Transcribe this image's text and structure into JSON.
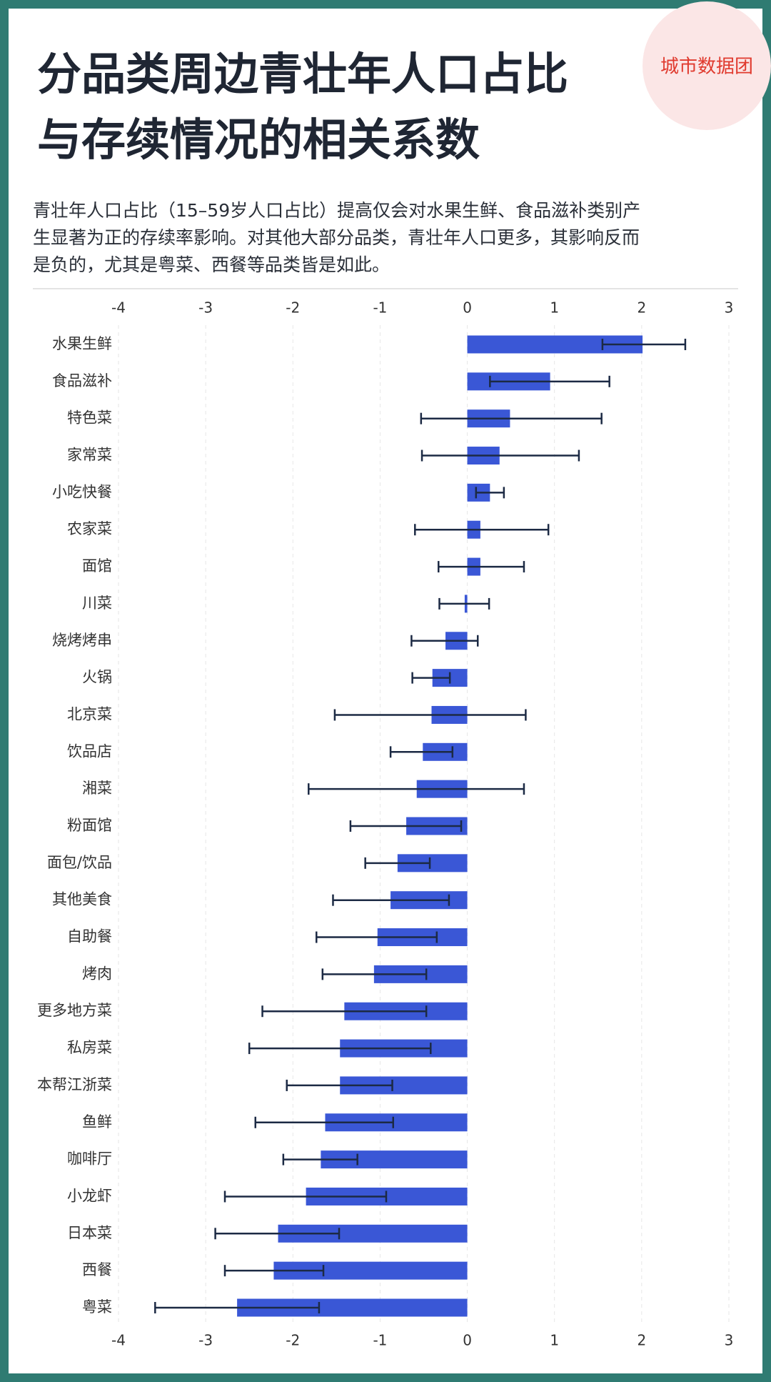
{
  "chart_data": {
    "type": "bar",
    "orientation": "horizontal",
    "title": [
      "分品类周边青壮年人口占比",
      "与存续情况的相关系数"
    ],
    "subtitle": [
      "青壮年人口占比（15–59岁人口占比）提高仅会对水果生鲜、食品滋补类别产",
      "生显著为正的存续率影响。对其他大部分品类，青壮年人口更多，其影响反而",
      "是负的，尤其是粤菜、西餐等品类皆是如此。"
    ],
    "watermark": "城市数据团",
    "categories": [
      "水果生鲜",
      "食品滋补",
      "特色菜",
      "家常菜",
      "小吃快餐",
      "农家菜",
      "面馆",
      "川菜",
      "烧烤烤串",
      "火锅",
      "北京菜",
      "饮品店",
      "湘菜",
      "粉面馆",
      "面包/饮品",
      "其他美食",
      "自助餐",
      "烤肉",
      "更多地方菜",
      "私房菜",
      "本帮江浙菜",
      "鱼鲜",
      "咖啡厅",
      "小龙虾",
      "日本菜",
      "西餐",
      "粤菜"
    ],
    "values": [
      2.01,
      0.95,
      0.49,
      0.37,
      0.26,
      0.15,
      0.15,
      -0.03,
      -0.25,
      -0.4,
      -0.41,
      -0.51,
      -0.58,
      -0.7,
      -0.8,
      -0.88,
      -1.03,
      -1.07,
      -1.41,
      -1.46,
      -1.46,
      -1.63,
      -1.68,
      -1.85,
      -2.17,
      -2.22,
      -2.64
    ],
    "error_low": [
      1.55,
      0.26,
      -0.53,
      -0.52,
      0.1,
      -0.6,
      -0.33,
      -0.32,
      -0.64,
      -0.63,
      -1.52,
      -0.88,
      -1.82,
      -1.34,
      -1.17,
      -1.54,
      -1.73,
      -1.66,
      -2.35,
      -2.5,
      -2.07,
      -2.43,
      -2.11,
      -2.78,
      -2.89,
      -2.78,
      -3.58
    ],
    "error_high": [
      2.5,
      1.63,
      1.54,
      1.28,
      0.42,
      0.93,
      0.65,
      0.25,
      0.12,
      -0.2,
      0.67,
      -0.17,
      0.65,
      -0.07,
      -0.43,
      -0.21,
      -0.35,
      -0.47,
      -0.47,
      -0.42,
      -0.86,
      -0.85,
      -1.26,
      -0.93,
      -1.47,
      -1.65,
      -1.7
    ],
    "color": "#3a57d6",
    "error_color": "#1c2a44",
    "xlim": [
      -4,
      3
    ],
    "xticks": [
      -4,
      -3,
      -2,
      -1,
      0,
      1,
      2,
      3
    ],
    "grid": true
  }
}
